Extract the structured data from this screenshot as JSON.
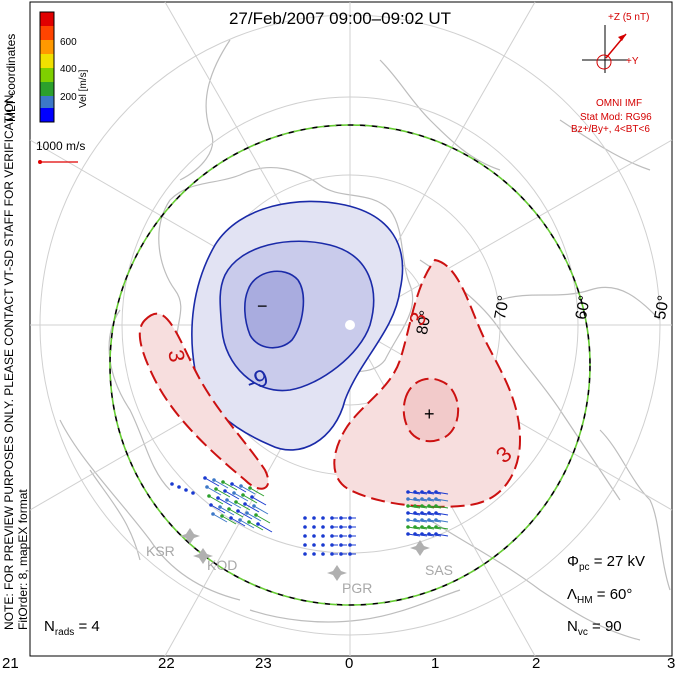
{
  "title": "27/Feb/2007 09:00–09:02 UT",
  "coordinates": "MLT coordinates",
  "colorbar": {
    "label": "Vel [m/s]",
    "ticks": [
      "600",
      "400",
      "200"
    ],
    "colors": [
      "#0000ff",
      "#3c78c8",
      "#2ca02c",
      "#7fd000",
      "#f0e000",
      "#ff9900",
      "#ff4400",
      "#e00000"
    ]
  },
  "vector_scale": "1000 m/s",
  "imf": {
    "z_label": "+Z (5 nT)",
    "y_label": "+Y",
    "source": "OMNI IMF",
    "model": "Stat Mod: RG96",
    "condition": "Bz+/By+, 4<BT<6"
  },
  "note_line1": "NOTE: FOR PREVIEW PURPOSES ONLY. PLEASE CONTACT VT-SD STAFF FOR VERIFICATION.",
  "note_line2": "FitOrder: 8, mapEX format",
  "lat_labels": [
    "80°",
    "70°",
    "60°",
    "50°"
  ],
  "contour_labels": {
    "neg": "-9",
    "pos1": "3",
    "pos2": "3",
    "pos3": "3"
  },
  "markers": {
    "min": "−",
    "max": "+"
  },
  "stations": [
    "KSR",
    "KOD",
    "PGR",
    "SAS"
  ],
  "mlt_labels": [
    "21",
    "22",
    "23",
    "0",
    "1",
    "2",
    "3"
  ],
  "stats": {
    "phi_sym": "Φ",
    "phi_sub": "pc",
    "phi_value": "= 27 kV",
    "lambda_sym": "Λ",
    "lambda_sub": "HM",
    "lambda_value": "= 60°",
    "nvc_sym": "N",
    "nvc_sub": "vc",
    "nvc_value": "= 90",
    "nrads_sym": "N",
    "nrads_sub": "rads",
    "nrads_value": "= 4"
  },
  "colors": {
    "negative": "#1a2aa8",
    "positive": "#cc1111",
    "hmb_green": "#66cc33"
  }
}
